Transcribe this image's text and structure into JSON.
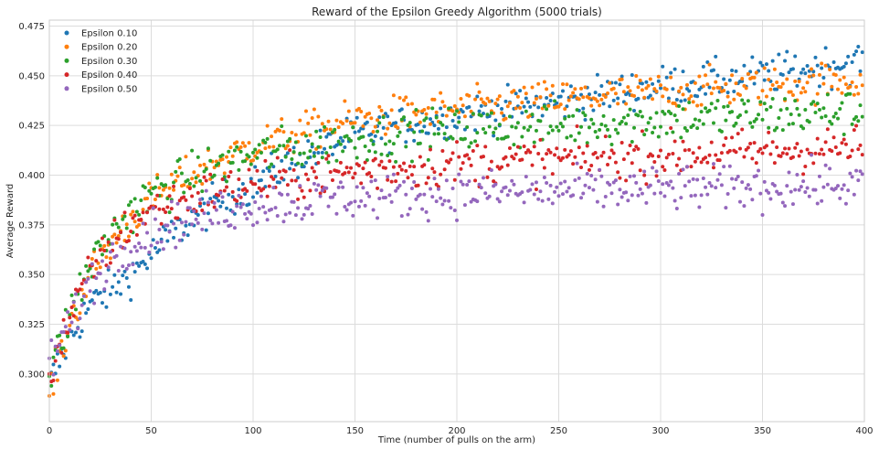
{
  "chart_data": {
    "type": "scatter",
    "title": "Reward of the Epsilon Greedy Algorithm (5000 trials)",
    "xlabel": "Time (number of pulls on the arm)",
    "ylabel": "Average Reward",
    "xlim": [
      0,
      400
    ],
    "ylim": [
      0.276,
      0.478
    ],
    "xticks": [
      0,
      50,
      100,
      150,
      200,
      250,
      300,
      350,
      400
    ],
    "yticks": [
      0.3,
      0.325,
      0.35,
      0.375,
      0.4,
      0.425,
      0.45,
      0.475
    ],
    "xtick_labels": [
      "0",
      "50",
      "100",
      "150",
      "200",
      "250",
      "300",
      "350",
      "400"
    ],
    "ytick_labels": [
      "0.300",
      "0.325",
      "0.350",
      "0.375",
      "0.400",
      "0.425",
      "0.450",
      "0.475"
    ],
    "grid": true,
    "legend_position": "top-left",
    "points_per_series": 400,
    "series": [
      {
        "name": "Epsilon 0.10",
        "color": "#1f77b4",
        "trend": [
          [
            0,
            0.295
          ],
          [
            10,
            0.318
          ],
          [
            20,
            0.335
          ],
          [
            30,
            0.342
          ],
          [
            40,
            0.35
          ],
          [
            50,
            0.36
          ],
          [
            60,
            0.37
          ],
          [
            80,
            0.385
          ],
          [
            100,
            0.395
          ],
          [
            125,
            0.41
          ],
          [
            150,
            0.42
          ],
          [
            200,
            0.43
          ],
          [
            250,
            0.437
          ],
          [
            300,
            0.445
          ],
          [
            350,
            0.45
          ],
          [
            400,
            0.458
          ]
        ],
        "spread": 0.007
      },
      {
        "name": "Epsilon 0.20",
        "color": "#ff7f0e",
        "trend": [
          [
            0,
            0.29
          ],
          [
            10,
            0.325
          ],
          [
            20,
            0.35
          ],
          [
            30,
            0.365
          ],
          [
            40,
            0.378
          ],
          [
            50,
            0.388
          ],
          [
            75,
            0.403
          ],
          [
            100,
            0.415
          ],
          [
            150,
            0.428
          ],
          [
            200,
            0.433
          ],
          [
            250,
            0.438
          ],
          [
            300,
            0.442
          ],
          [
            350,
            0.445
          ],
          [
            400,
            0.448
          ]
        ],
        "spread": 0.007
      },
      {
        "name": "Epsilon 0.30",
        "color": "#2ca02c",
        "trend": [
          [
            0,
            0.298
          ],
          [
            10,
            0.33
          ],
          [
            20,
            0.355
          ],
          [
            30,
            0.37
          ],
          [
            40,
            0.382
          ],
          [
            50,
            0.39
          ],
          [
            75,
            0.402
          ],
          [
            100,
            0.41
          ],
          [
            150,
            0.418
          ],
          [
            200,
            0.423
          ],
          [
            250,
            0.425
          ],
          [
            300,
            0.428
          ],
          [
            350,
            0.43
          ],
          [
            400,
            0.432
          ]
        ],
        "spread": 0.008
      },
      {
        "name": "Epsilon 0.40",
        "color": "#d62728",
        "trend": [
          [
            0,
            0.3
          ],
          [
            10,
            0.328
          ],
          [
            20,
            0.35
          ],
          [
            30,
            0.365
          ],
          [
            40,
            0.375
          ],
          [
            50,
            0.382
          ],
          [
            75,
            0.39
          ],
          [
            100,
            0.396
          ],
          [
            150,
            0.402
          ],
          [
            200,
            0.406
          ],
          [
            250,
            0.408
          ],
          [
            300,
            0.41
          ],
          [
            350,
            0.412
          ],
          [
            400,
            0.414
          ]
        ],
        "spread": 0.008
      },
      {
        "name": "Epsilon 0.50",
        "color": "#9467bd",
        "trend": [
          [
            0,
            0.305
          ],
          [
            10,
            0.325
          ],
          [
            20,
            0.345
          ],
          [
            30,
            0.358
          ],
          [
            40,
            0.366
          ],
          [
            50,
            0.372
          ],
          [
            75,
            0.38
          ],
          [
            100,
            0.385
          ],
          [
            150,
            0.389
          ],
          [
            200,
            0.391
          ],
          [
            250,
            0.392
          ],
          [
            300,
            0.393
          ],
          [
            350,
            0.394
          ],
          [
            400,
            0.395
          ]
        ],
        "spread": 0.008
      }
    ]
  }
}
